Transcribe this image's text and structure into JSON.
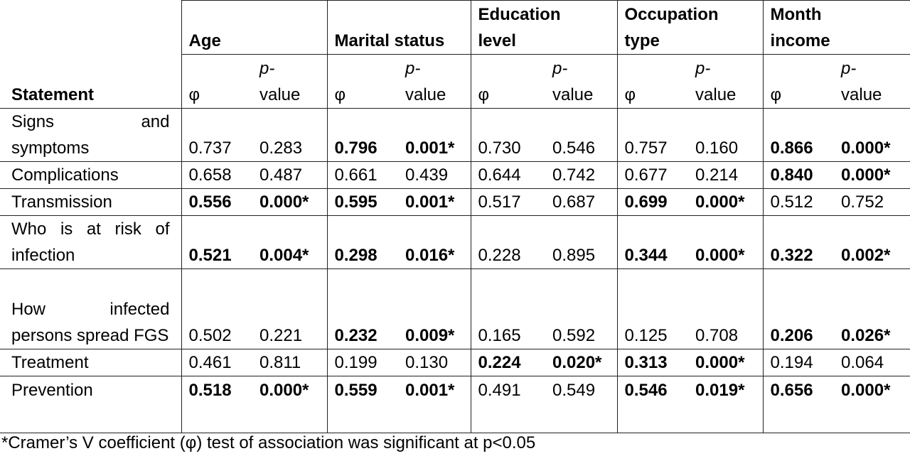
{
  "table": {
    "statement_header": "Statement",
    "groups": [
      [
        "Age"
      ],
      [
        "Marital status"
      ],
      [
        "Education",
        "level"
      ],
      [
        "Occupation",
        "type"
      ],
      [
        "Month",
        "income"
      ]
    ],
    "phi": "φ",
    "p_prefix": "p-",
    "p_suffix": "value",
    "rows": [
      {
        "statement": "Signs and symptoms",
        "values": [
          "0.737",
          "0.283",
          "0.796",
          "0.001*",
          "0.730",
          "0.546",
          "0.757",
          "0.160",
          "0.866",
          "0.000*"
        ],
        "significant": [
          false,
          true,
          false,
          false,
          true
        ]
      },
      {
        "statement": "Complications",
        "values": [
          "0.658",
          "0.487",
          "0.661",
          "0.439",
          "0.644",
          "0.742",
          "0.677",
          "0.214",
          "0.840",
          "0.000*"
        ],
        "significant": [
          false,
          false,
          false,
          false,
          true
        ]
      },
      {
        "statement": "Transmission",
        "values": [
          "0.556",
          "0.000*",
          "0.595",
          "0.001*",
          "0.517",
          "0.687",
          "0.699",
          "0.000*",
          "0.512",
          "0.752"
        ],
        "significant": [
          true,
          true,
          false,
          true,
          false
        ]
      },
      {
        "statement": "Who is at risk of infection",
        "values": [
          "0.521",
          "0.004*",
          "0.298",
          "0.016*",
          "0.228",
          "0.895",
          "0.344",
          "0.000*",
          "0.322",
          "0.002*"
        ],
        "significant": [
          true,
          true,
          false,
          true,
          true
        ]
      },
      {
        "statement": "How infected persons spread FGS",
        "values": [
          "0.502",
          "0.221",
          "0.232",
          "0.009*",
          "0.165",
          "0.592",
          "0.125",
          "0.708",
          "0.206",
          "0.026*"
        ],
        "significant": [
          false,
          true,
          false,
          false,
          true
        ]
      },
      {
        "statement": "Treatment",
        "values": [
          "0.461",
          "0.811",
          "0.199",
          "0.130",
          "0.224",
          "0.020*",
          "0.313",
          "0.000*",
          "0.194",
          "0.064"
        ],
        "significant": [
          false,
          false,
          true,
          true,
          false
        ]
      },
      {
        "statement": "Prevention",
        "values": [
          "0.518",
          "0.000*",
          "0.559",
          "0.001*",
          "0.491",
          "0.549",
          "0.546",
          "0.019*",
          "0.656",
          "0.000*"
        ],
        "significant": [
          true,
          true,
          false,
          true,
          true
        ]
      }
    ]
  },
  "footnote": "*Cramer’s V coefficient (φ) test of association was significant at p<0.05"
}
